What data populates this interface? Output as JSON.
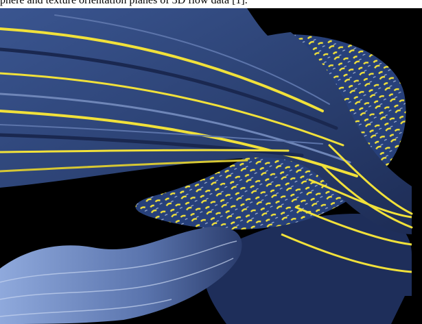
{
  "caption": {
    "text": "phere and texture orientation planes of 3D flow data [1]."
  },
  "visualization": {
    "background": "#000000",
    "base_color": "#2f4578",
    "highlight_color": "#f1e13a",
    "light_color": "#aac0e8",
    "description_icon": "flow-visualization"
  }
}
